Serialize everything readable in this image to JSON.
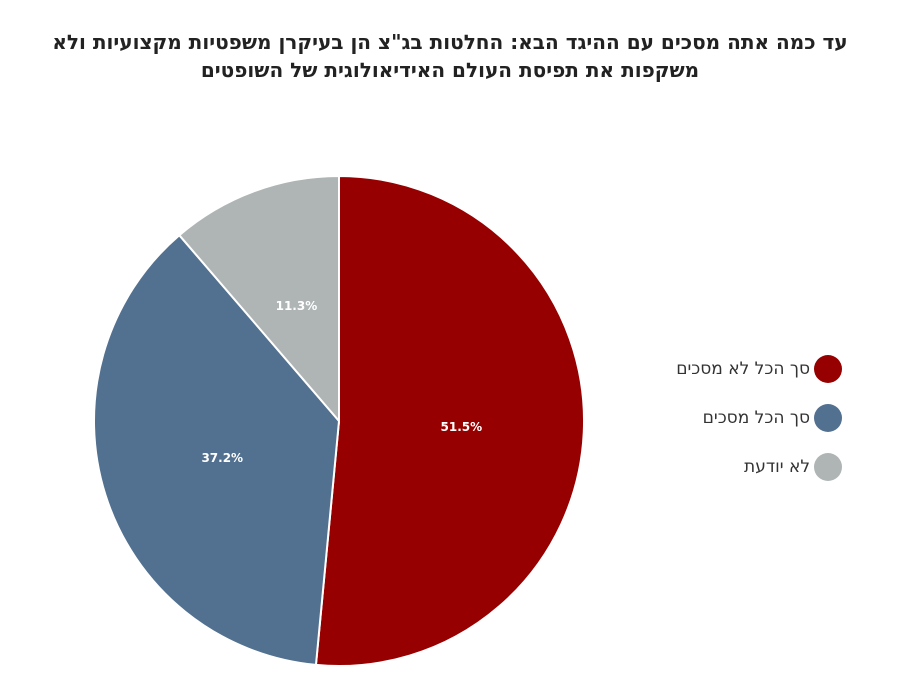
{
  "chart_data": {
    "type": "pie",
    "title_lines": [
      "עד כמה אתה מסכים עם ההיגד הבא: החלטות בג\"צ הן בעיקרן משפטיות מקצועיות ולא",
      "משקפות את תפיסת העולם האידיאולוגית של השופטים"
    ],
    "slices": [
      {
        "label": "סך הכל לא מסכים",
        "value": 51.5,
        "value_label": "51.5%",
        "color": "#960000"
      },
      {
        "label": "סך הכל מסכים",
        "value": 37.2,
        "value_label": "37.2%",
        "color": "#52708f"
      },
      {
        "label": "לא יודעת",
        "value": 11.3,
        "value_label": "11.3%",
        "color": "#afb4b4"
      }
    ],
    "legend_position": "right"
  }
}
